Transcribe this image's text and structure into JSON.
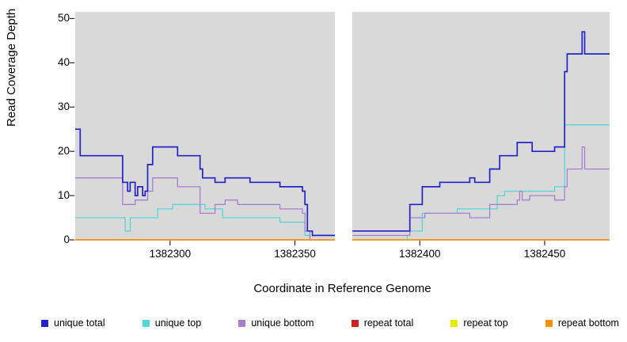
{
  "chart_data": {
    "type": "line",
    "step": true,
    "title": "",
    "xlabel": "Coordinate in Reference Genome",
    "ylabel": "Read Coverage Depth",
    "xlim": [
      1382262,
      1382476
    ],
    "ylim": [
      0,
      51.5
    ],
    "x_ticks": [
      1382300,
      1382350,
      1382400,
      1382450
    ],
    "y_ticks": [
      0,
      10,
      20,
      30,
      40,
      50
    ],
    "plot_bg": "#d9d9d9",
    "gap_region": [
      1382366,
      1382373
    ],
    "grid": false,
    "legend_position": "bottom",
    "series": [
      {
        "name": "unique total",
        "color": "#2323c8",
        "width": 1.7,
        "segments": [
          [
            [
              1382262,
              25
            ],
            [
              1382264,
              19
            ],
            [
              1382281,
              13
            ],
            [
              1382283,
              11
            ],
            [
              1382284,
              13
            ],
            [
              1382286,
              10
            ],
            [
              1382287,
              12
            ],
            [
              1382289,
              10
            ],
            [
              1382290,
              11
            ],
            [
              1382291,
              17
            ],
            [
              1382293,
              21
            ],
            [
              1382301,
              21
            ],
            [
              1382303,
              19
            ],
            [
              1382310,
              19
            ],
            [
              1382312,
              16
            ],
            [
              1382313,
              14
            ],
            [
              1382318,
              13
            ],
            [
              1382322,
              14
            ],
            [
              1382332,
              13
            ],
            [
              1382342,
              13
            ],
            [
              1382344,
              12
            ],
            [
              1382352,
              12
            ],
            [
              1382353,
              11
            ],
            [
              1382354,
              8
            ],
            [
              1382355,
              2
            ],
            [
              1382357,
              1
            ],
            [
              1382366,
              1
            ]
          ],
          [
            [
              1382373,
              2
            ],
            [
              1382394,
              2
            ],
            [
              1382396,
              8
            ],
            [
              1382400,
              8
            ],
            [
              1382401,
              12
            ],
            [
              1382407,
              12
            ],
            [
              1382408,
              13
            ],
            [
              1382419,
              13
            ],
            [
              1382420,
              14
            ],
            [
              1382422,
              13
            ],
            [
              1382427,
              13
            ],
            [
              1382428,
              16
            ],
            [
              1382431,
              16
            ],
            [
              1382432,
              19
            ],
            [
              1382438,
              19
            ],
            [
              1382439,
              22
            ],
            [
              1382444,
              22
            ],
            [
              1382445,
              20
            ],
            [
              1382453,
              20
            ],
            [
              1382454,
              21
            ],
            [
              1382457,
              21
            ],
            [
              1382458,
              38
            ],
            [
              1382459,
              42
            ],
            [
              1382464,
              42
            ],
            [
              1382465,
              47
            ],
            [
              1382466,
              42
            ],
            [
              1382476,
              42
            ]
          ]
        ]
      },
      {
        "name": "unique top",
        "color": "#55d6d6",
        "width": 1.3,
        "segments": [
          [
            [
              1382262,
              5
            ],
            [
              1382281,
              5
            ],
            [
              1382282,
              2
            ],
            [
              1382284,
              5
            ],
            [
              1382294,
              5
            ],
            [
              1382295,
              7
            ],
            [
              1382301,
              8
            ],
            [
              1382313,
              8
            ],
            [
              1382314,
              7
            ],
            [
              1382320,
              7
            ],
            [
              1382321,
              5
            ],
            [
              1382342,
              5
            ],
            [
              1382344,
              4
            ],
            [
              1382352,
              4
            ],
            [
              1382354,
              1
            ],
            [
              1382356,
              0
            ],
            [
              1382366,
              0
            ]
          ],
          [
            [
              1382373,
              0
            ],
            [
              1382394,
              0
            ],
            [
              1382395,
              1
            ],
            [
              1382396,
              2
            ],
            [
              1382401,
              6
            ],
            [
              1382414,
              6
            ],
            [
              1382415,
              7
            ],
            [
              1382427,
              7
            ],
            [
              1382431,
              10
            ],
            [
              1382433,
              10
            ],
            [
              1382434,
              11
            ],
            [
              1382444,
              11
            ],
            [
              1382453,
              11
            ],
            [
              1382454,
              12
            ],
            [
              1382457,
              12
            ],
            [
              1382458,
              26
            ],
            [
              1382476,
              26
            ]
          ]
        ]
      },
      {
        "name": "unique bottom",
        "color": "#a77fd0",
        "width": 1.3,
        "segments": [
          [
            [
              1382262,
              14
            ],
            [
              1382280,
              14
            ],
            [
              1382281,
              8
            ],
            [
              1382285,
              8
            ],
            [
              1382286,
              9
            ],
            [
              1382290,
              9
            ],
            [
              1382291,
              11
            ],
            [
              1382293,
              14
            ],
            [
              1382301,
              14
            ],
            [
              1382303,
              12
            ],
            [
              1382310,
              12
            ],
            [
              1382312,
              6
            ],
            [
              1382317,
              6
            ],
            [
              1382318,
              8
            ],
            [
              1382322,
              9
            ],
            [
              1382326,
              9
            ],
            [
              1382327,
              8
            ],
            [
              1382342,
              8
            ],
            [
              1382344,
              7
            ],
            [
              1382352,
              7
            ],
            [
              1382353,
              6
            ],
            [
              1382354,
              2
            ],
            [
              1382356,
              0
            ],
            [
              1382366,
              0
            ]
          ],
          [
            [
              1382373,
              1
            ],
            [
              1382394,
              1
            ],
            [
              1382396,
              5
            ],
            [
              1382401,
              5
            ],
            [
              1382402,
              6
            ],
            [
              1382419,
              6
            ],
            [
              1382420,
              5
            ],
            [
              1382427,
              5
            ],
            [
              1382428,
              8
            ],
            [
              1382438,
              8
            ],
            [
              1382439,
              9
            ],
            [
              1382440,
              11
            ],
            [
              1382441,
              9
            ],
            [
              1382444,
              10
            ],
            [
              1382453,
              10
            ],
            [
              1382454,
              9
            ],
            [
              1382457,
              9
            ],
            [
              1382458,
              12
            ],
            [
              1382459,
              16
            ],
            [
              1382464,
              16
            ],
            [
              1382465,
              21
            ],
            [
              1382466,
              16
            ],
            [
              1382476,
              16
            ]
          ]
        ]
      },
      {
        "name": "repeat total",
        "color": "#cc2222",
        "width": 1.3,
        "segments": [
          [
            [
              1382262,
              0
            ],
            [
              1382366,
              0
            ]
          ],
          [
            [
              1382373,
              0
            ],
            [
              1382476,
              0
            ]
          ]
        ]
      },
      {
        "name": "repeat top",
        "color": "#e8e800",
        "width": 1.3,
        "segments": [
          [
            [
              1382262,
              0
            ],
            [
              1382366,
              0
            ]
          ],
          [
            [
              1382373,
              0
            ],
            [
              1382476,
              0
            ]
          ]
        ]
      },
      {
        "name": "repeat bottom",
        "color": "#ff9100",
        "width": 1.6,
        "segments": [
          [
            [
              1382262,
              0
            ],
            [
              1382366,
              0
            ]
          ],
          [
            [
              1382373,
              0
            ],
            [
              1382476,
              0
            ]
          ]
        ]
      }
    ]
  }
}
